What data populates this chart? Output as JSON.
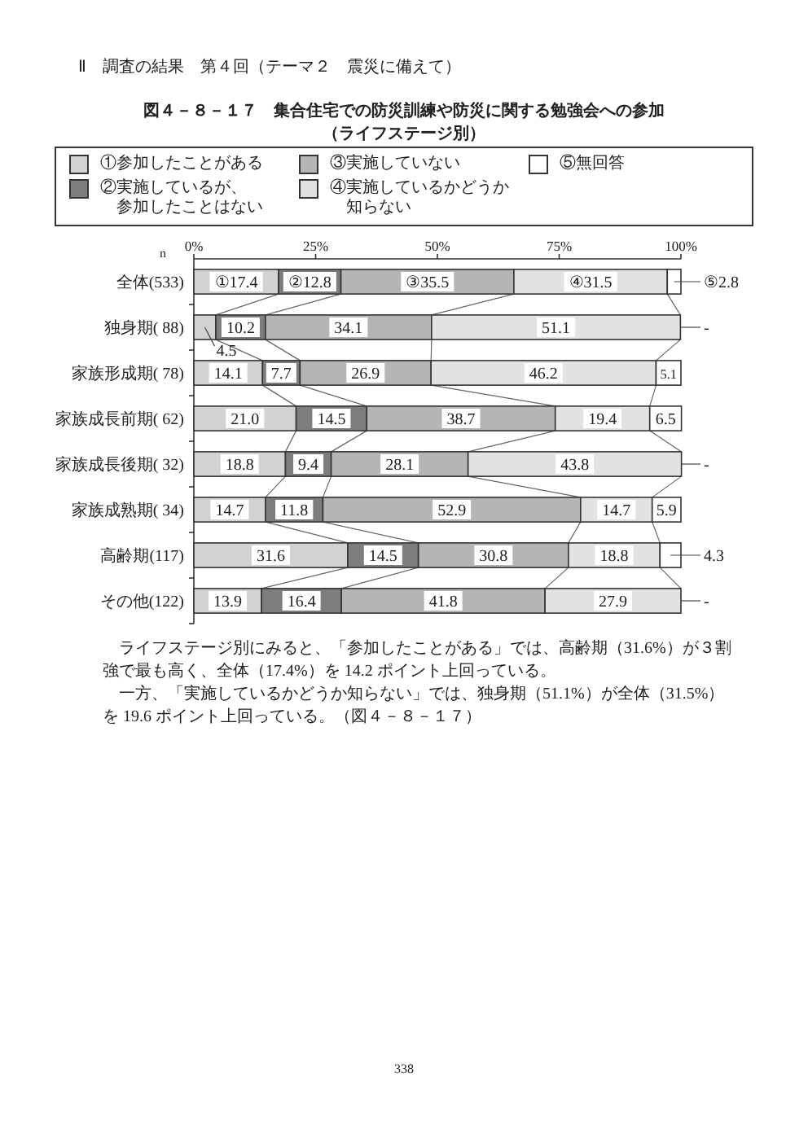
{
  "chart_data": {
    "type": "bar",
    "orientation": "horizontal",
    "stacked": true,
    "title": "図４－８－１７　集合住宅での防災訓練や防災に関する勉強会への参加",
    "subtitle": "（ライフステージ別）",
    "ylabel": "n",
    "categories": [
      "全体(533)",
      "独身期( 88)",
      "家族形成期( 78)",
      "家族成長前期( 62)",
      "家族成長後期( 32)",
      "家族成熟期( 34)",
      "高齢期(117)",
      "その他(122)"
    ],
    "series": [
      {
        "name": "①参加したことがある",
        "color": "#d2d2d2",
        "values": [
          17.4,
          4.5,
          14.1,
          21.0,
          18.8,
          14.7,
          31.6,
          13.9
        ],
        "value_labels": [
          "①17.4",
          "4.5",
          "14.1",
          "21.0",
          "18.8",
          "14.7",
          "31.6",
          "13.9"
        ]
      },
      {
        "name": "②実施しているが、参加したことはない",
        "color": "#7d7d7d",
        "values": [
          12.8,
          10.2,
          7.7,
          14.5,
          9.4,
          11.8,
          14.5,
          16.4
        ],
        "value_labels": [
          "②12.8",
          "10.2",
          "7.7",
          "14.5",
          "9.4",
          "11.8",
          "14.5",
          "16.4"
        ]
      },
      {
        "name": "③実施していない",
        "color": "#b5b5b5",
        "values": [
          35.5,
          34.1,
          26.9,
          38.7,
          28.1,
          52.9,
          30.8,
          41.8
        ],
        "value_labels": [
          "③35.5",
          "34.1",
          "26.9",
          "38.7",
          "28.1",
          "52.9",
          "30.8",
          "41.8"
        ]
      },
      {
        "name": "④実施しているかどうか知らない",
        "color": "#e2e2e2",
        "values": [
          31.5,
          51.1,
          46.2,
          19.4,
          43.8,
          14.7,
          18.8,
          27.9
        ],
        "value_labels": [
          "④31.5",
          "51.1",
          "46.2",
          "19.4",
          "43.8",
          "14.7",
          "18.8",
          "27.9"
        ]
      },
      {
        "name": "⑤無回答",
        "color": "#ffffff",
        "values": [
          2.8,
          0,
          5.1,
          6.5,
          0,
          5.9,
          4.3,
          0
        ],
        "value_labels": [
          "⑤2.8",
          "-",
          "5.1",
          "6.5",
          "-",
          "5.9",
          "4.3",
          "-"
        ]
      }
    ],
    "xlim": [
      0,
      100
    ],
    "xticks": [
      {
        "value": 0,
        "label": "0%"
      },
      {
        "value": 25,
        "label": "25%"
      },
      {
        "value": 50,
        "label": "50%"
      },
      {
        "value": 75,
        "label": "75%"
      },
      {
        "value": 100,
        "label": "100%"
      }
    ],
    "legend": "top",
    "annotations": [
      "Ⅱ　調査の結果　第４回（テーマ２　震災に備えて）",
      "ライフステージ別にみると、「参加したことがある」では、高齢期（31.6%）が３割強で最も高く、全体（17.4%）を 14.2 ポイント上回っている。",
      "一方、「実施しているかどうか知らない」では、独身期（51.1%）が全体（31.5%）を 19.6 ポイント上回っている。（図４－８－１７）",
      "338"
    ]
  }
}
